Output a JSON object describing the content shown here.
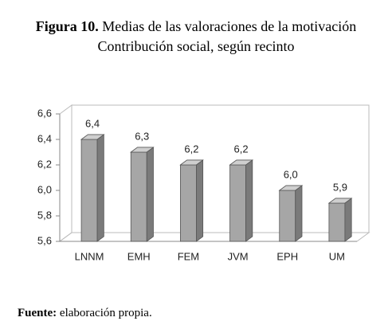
{
  "chart_data": {
    "type": "bar3d",
    "figure_label": "Figura 10.",
    "title": "Medias de las valoraciones de la motivación",
    "subtitle": "Contribución social, según recinto",
    "categories": [
      "LNNM",
      "EMH",
      "FEM",
      "JVM",
      "EPH",
      "UM"
    ],
    "values": [
      6.4,
      6.3,
      6.2,
      6.2,
      6.0,
      5.9
    ],
    "value_labels": [
      "6,4",
      "6,3",
      "6,2",
      "6,2",
      "6,0",
      "5,9"
    ],
    "color": "#a6a6a6",
    "ylim": [
      5.6,
      6.6
    ],
    "yticks": [
      {
        "value": 5.6,
        "label": "5,6"
      },
      {
        "value": 5.8,
        "label": "5,8"
      },
      {
        "value": 6.0,
        "label": "6,0"
      },
      {
        "value": 6.2,
        "label": "6,2"
      },
      {
        "value": 6.4,
        "label": "6,4"
      },
      {
        "value": 6.6,
        "label": "6,6"
      }
    ],
    "grid": false,
    "source_label": "Fuente:",
    "source": "elaboración propia."
  }
}
